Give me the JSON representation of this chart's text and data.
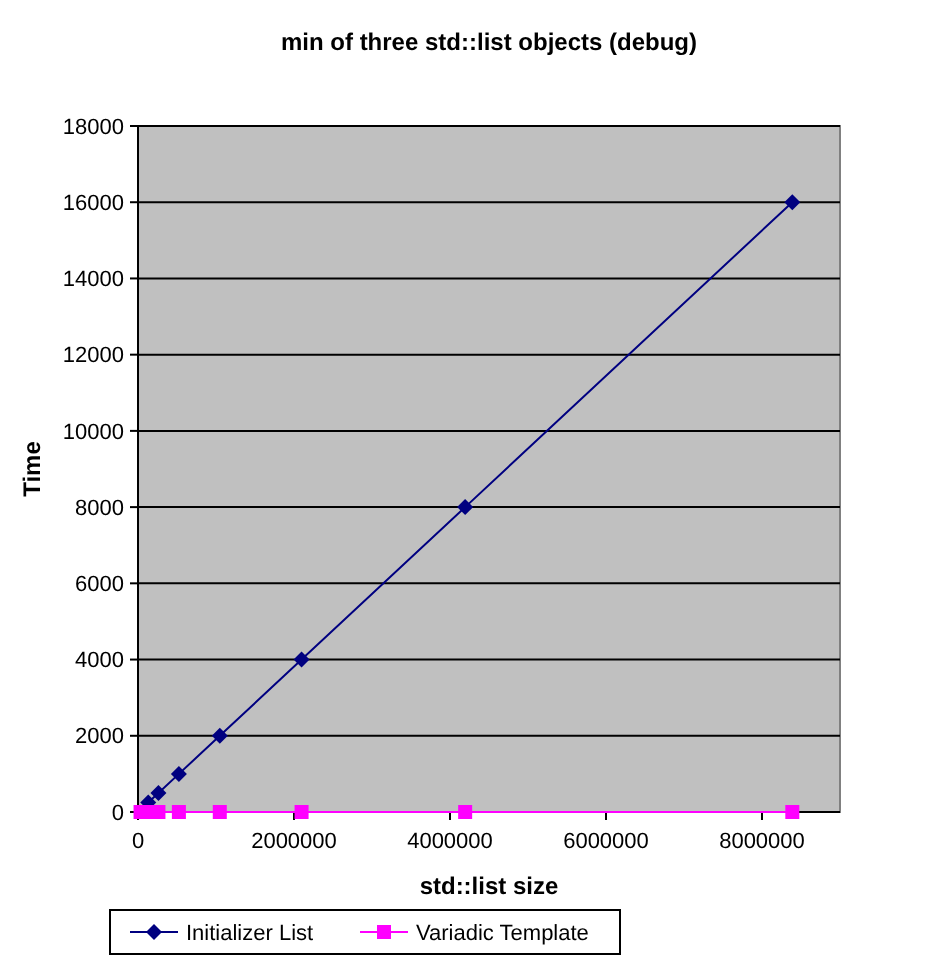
{
  "chart_data": {
    "type": "line",
    "title": "min of three std::list objects (debug)",
    "xlabel": "std::list size",
    "ylabel": "Time",
    "xlim": [
      0,
      9000000
    ],
    "xticks": [
      0,
      2000000,
      4000000,
      6000000,
      8000000
    ],
    "ylim": [
      0,
      18000
    ],
    "yticks": [
      0,
      2000,
      4000,
      6000,
      8000,
      10000,
      12000,
      14000,
      16000,
      18000
    ],
    "grid": "y",
    "legend": "bottom",
    "series": [
      {
        "name": "Initializer List",
        "color": "#000080",
        "marker": "diamond",
        "x": [
          131072,
          262144,
          524288,
          1048576,
          2097152,
          4194304,
          8388608
        ],
        "values": [
          250,
          500,
          1000,
          2000,
          4000,
          8000,
          16000
        ]
      },
      {
        "name": "Variadic Template",
        "color": "#ff00ff",
        "marker": "square",
        "x": [
          32768,
          65536,
          131072,
          262144,
          524288,
          1048576,
          2097152,
          4194304,
          8388608
        ],
        "values": [
          0,
          0,
          0,
          0,
          0,
          0,
          0,
          0,
          0
        ]
      }
    ]
  }
}
